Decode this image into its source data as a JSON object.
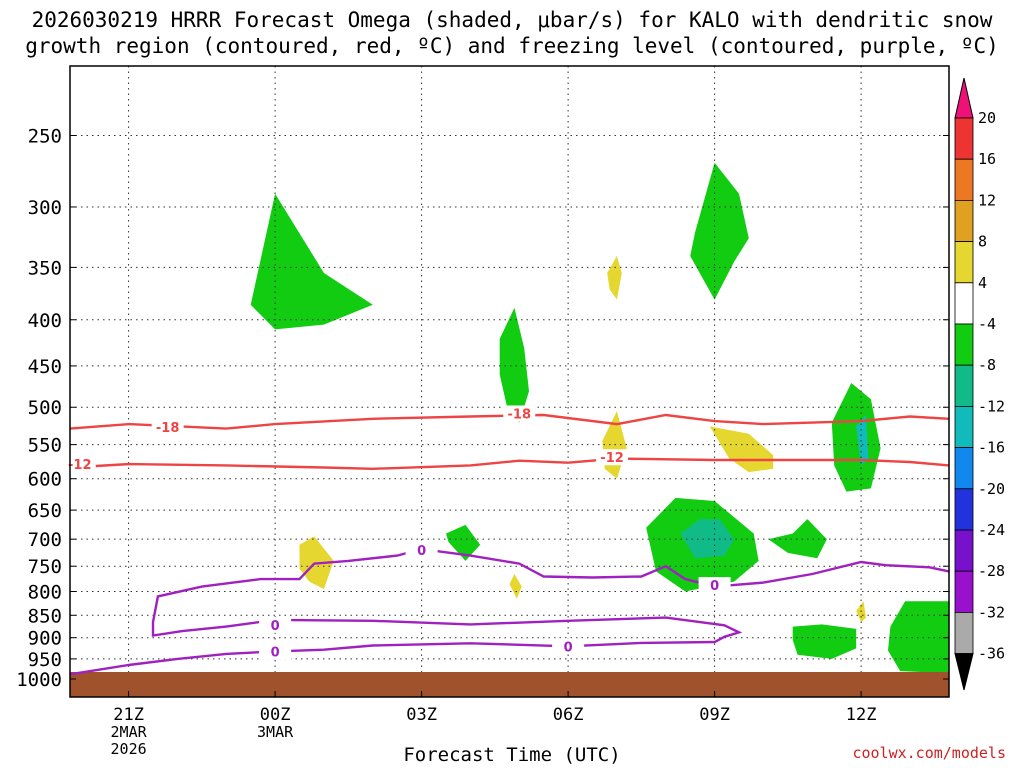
{
  "title_line1": "2026030219 HRRR Forecast Omega (shaded, μbar/s) for KALO with dendritic snow",
  "title_line2": "growth region (contoured, red, ºC) and freezing level (contoured, purple, ºC)",
  "credit": "coolwx.com/models",
  "chart_data": {
    "type": "time-height cross section",
    "title": "2026030219 HRRR Forecast Omega (shaded, μbar/s) for KALO with dendritic snow growth region (contoured, red, ºC) and freezing level (contoured, purple, ºC)",
    "xlabel": "Forecast Time (UTC)",
    "ylabel": "",
    "x_range_hours": [
      -4.2,
      13.8
    ],
    "y_scale": "log-pressure",
    "y_range_hpa": [
      1000,
      200
    ],
    "x_ticks": [
      {
        "h": -3,
        "label": "21Z",
        "sub1": "2MAR",
        "sub2": "2026"
      },
      {
        "h": 0,
        "label": "00Z",
        "sub1": "3MAR",
        "sub2": ""
      },
      {
        "h": 3,
        "label": "03Z",
        "sub1": "",
        "sub2": ""
      },
      {
        "h": 6,
        "label": "06Z",
        "sub1": "",
        "sub2": ""
      },
      {
        "h": 9,
        "label": "09Z",
        "sub1": "",
        "sub2": ""
      },
      {
        "h": 12,
        "label": "12Z",
        "sub1": "",
        "sub2": ""
      }
    ],
    "y_ticks": [
      250,
      300,
      350,
      400,
      450,
      500,
      550,
      600,
      650,
      700,
      750,
      800,
      850,
      900,
      950,
      1000
    ],
    "colorbar": {
      "labels": [
        "20",
        "16",
        "12",
        "8",
        "4",
        "-4",
        "-8",
        "-12",
        "-16",
        "-20",
        "-24",
        "-28",
        "-32",
        "-36"
      ],
      "colors": [
        "#ee1177",
        "#ee3333",
        "#ee7722",
        "#e0a020",
        "#e6d630",
        "#ffffff",
        "#11cc11",
        "#11bb88",
        "#11bbbb",
        "#1188ee",
        "#2233dd",
        "#7711cc",
        "#9911cc",
        "#aaaaaa",
        "#000000"
      ]
    },
    "ground_color": "#a0522d",
    "omega_regions": [
      {
        "color": "#11cc11",
        "pts": [
          [
            -0.5,
            385
          ],
          [
            0,
            290
          ],
          [
            1,
            355
          ],
          [
            2,
            385
          ],
          [
            1,
            405
          ],
          [
            0,
            410
          ]
        ]
      },
      {
        "color": "#11cc11",
        "pts": [
          [
            8.6,
            320
          ],
          [
            9,
            268
          ],
          [
            9.5,
            290
          ],
          [
            9.7,
            325
          ],
          [
            9.4,
            345
          ],
          [
            9,
            380
          ],
          [
            8.5,
            340
          ]
        ]
      },
      {
        "color": "#11cc11",
        "pts": [
          [
            4.6,
            420
          ],
          [
            4.9,
            388
          ],
          [
            5.1,
            430
          ],
          [
            5.2,
            480
          ],
          [
            5,
            520
          ],
          [
            4.75,
            500
          ],
          [
            4.6,
            460
          ]
        ]
      },
      {
        "color": "#e6d630",
        "pts": [
          [
            6.8,
            355
          ],
          [
            7,
            340
          ],
          [
            7.1,
            355
          ],
          [
            7,
            380
          ],
          [
            6.85,
            370
          ]
        ]
      },
      {
        "color": "#e6d630",
        "pts": [
          [
            6.7,
            545
          ],
          [
            7,
            505
          ],
          [
            7.2,
            555
          ],
          [
            7,
            600
          ],
          [
            6.75,
            585
          ]
        ]
      },
      {
        "color": "#e6d630",
        "pts": [
          [
            8.9,
            525
          ],
          [
            9.7,
            535
          ],
          [
            10.2,
            565
          ],
          [
            10.2,
            585
          ],
          [
            9.7,
            590
          ],
          [
            9.3,
            570
          ]
        ]
      },
      {
        "color": "#e6d630",
        "pts": [
          [
            0.5,
            710
          ],
          [
            0.8,
            695
          ],
          [
            1.2,
            740
          ],
          [
            1,
            795
          ],
          [
            0.7,
            780
          ],
          [
            0.5,
            755
          ]
        ]
      },
      {
        "color": "#e6d630",
        "pts": [
          [
            4.8,
            785
          ],
          [
            4.9,
            765
          ],
          [
            5.05,
            790
          ],
          [
            4.95,
            815
          ]
        ]
      },
      {
        "color": "#e6d630",
        "pts": [
          [
            11.9,
            840
          ],
          [
            12.05,
            820
          ],
          [
            12.1,
            855
          ],
          [
            12,
            865
          ]
        ]
      },
      {
        "color": "#11cc11",
        "pts": [
          [
            11.4,
            520
          ],
          [
            11.8,
            470
          ],
          [
            12.2,
            490
          ],
          [
            12.4,
            555
          ],
          [
            12.2,
            615
          ],
          [
            11.7,
            620
          ],
          [
            11.45,
            580
          ]
        ]
      },
      {
        "color": "#11bbbb",
        "pts": [
          [
            11.9,
            525
          ],
          [
            12.1,
            510
          ],
          [
            12.15,
            570
          ],
          [
            12,
            580
          ]
        ]
      },
      {
        "color": "#11cc11",
        "pts": [
          [
            3.5,
            690
          ],
          [
            3.9,
            675
          ],
          [
            4.2,
            710
          ],
          [
            3.9,
            740
          ],
          [
            3.55,
            705
          ]
        ]
      },
      {
        "color": "#11cc11",
        "pts": [
          [
            7.6,
            680
          ],
          [
            8.2,
            630
          ],
          [
            9,
            635
          ],
          [
            9.8,
            690
          ],
          [
            9.9,
            740
          ],
          [
            9.4,
            780
          ],
          [
            8.4,
            800
          ],
          [
            7.8,
            760
          ]
        ]
      },
      {
        "color": "#11bb88",
        "pts": [
          [
            8.3,
            690
          ],
          [
            8.7,
            665
          ],
          [
            9.1,
            665
          ],
          [
            9.4,
            700
          ],
          [
            9.2,
            730
          ],
          [
            8.6,
            735
          ]
        ]
      },
      {
        "color": "#11cc11",
        "pts": [
          [
            10.1,
            700
          ],
          [
            10.6,
            690
          ],
          [
            10.9,
            665
          ],
          [
            11.3,
            700
          ],
          [
            11.1,
            735
          ],
          [
            10.5,
            725
          ]
        ]
      },
      {
        "color": "#11cc11",
        "pts": [
          [
            10.6,
            875
          ],
          [
            11.2,
            870
          ],
          [
            11.9,
            880
          ],
          [
            11.9,
            925
          ],
          [
            11.4,
            950
          ],
          [
            10.7,
            940
          ],
          [
            10.6,
            905
          ]
        ]
      },
      {
        "color": "#11cc11",
        "pts": [
          [
            12.6,
            875
          ],
          [
            12.9,
            820
          ],
          [
            13.8,
            820
          ],
          [
            13.8,
            985
          ],
          [
            12.8,
            980
          ],
          [
            12.55,
            930
          ]
        ]
      }
    ],
    "contours": [
      {
        "name": "-18",
        "color": "#ee4444",
        "pts": [
          [
            -4.2,
            528
          ],
          [
            -3,
            522
          ],
          [
            -1,
            528
          ],
          [
            0,
            522
          ],
          [
            2,
            515
          ],
          [
            4,
            512
          ],
          [
            5.5,
            510
          ],
          [
            7,
            522
          ],
          [
            8,
            510
          ],
          [
            9,
            518
          ],
          [
            10,
            522
          ],
          [
            11,
            520
          ],
          [
            12,
            518
          ],
          [
            13,
            512
          ],
          [
            13.8,
            515
          ]
        ],
        "labels": [
          [
            -2.2,
            526
          ],
          [
            5.0,
            508
          ]
        ]
      },
      {
        "name": "-12",
        "color": "#ee4444",
        "pts": [
          [
            -4.2,
            583
          ],
          [
            -3,
            578
          ],
          [
            -1,
            580
          ],
          [
            1,
            583
          ],
          [
            2,
            585
          ],
          [
            4,
            580
          ],
          [
            5,
            573
          ],
          [
            6,
            576
          ],
          [
            7,
            570
          ],
          [
            9,
            572
          ],
          [
            11,
            572
          ],
          [
            12,
            572
          ],
          [
            13,
            575
          ],
          [
            13.8,
            580
          ]
        ],
        "labels": [
          [
            -4.0,
            578
          ],
          [
            6.9,
            568
          ]
        ]
      },
      {
        "name": "0",
        "color": "#a020c0",
        "pts": [
          [
            -4.2,
            988
          ],
          [
            -3,
            965
          ],
          [
            -2,
            950
          ],
          [
            -1,
            938
          ],
          [
            0,
            932
          ],
          [
            1,
            928
          ],
          [
            2,
            918
          ],
          [
            4,
            913
          ],
          [
            6,
            920
          ],
          [
            7.5,
            912
          ],
          [
            9,
            910
          ],
          [
            9.2,
            898
          ],
          [
            9.5,
            888
          ],
          [
            9.2,
            872
          ],
          [
            8,
            855
          ],
          [
            6,
            862
          ],
          [
            4,
            870
          ],
          [
            2,
            862
          ],
          [
            0,
            860
          ],
          [
            -1,
            875
          ],
          [
            -1.9,
            885
          ],
          [
            -2.5,
            895
          ],
          [
            -2.5,
            865
          ],
          [
            -2.4,
            810
          ],
          [
            -1.5,
            790
          ],
          [
            -0.3,
            775
          ],
          [
            0.5,
            775
          ],
          [
            0.8,
            745
          ],
          [
            1.5,
            740
          ],
          [
            2.5,
            730
          ],
          [
            3,
            718
          ],
          [
            4,
            730
          ],
          [
            5,
            745
          ],
          [
            5.5,
            770
          ],
          [
            6.5,
            772
          ],
          [
            7.5,
            770
          ],
          [
            8,
            750
          ],
          [
            8.4,
            775
          ],
          [
            9,
            790
          ],
          [
            10,
            782
          ],
          [
            11,
            765
          ],
          [
            12,
            742
          ],
          [
            12.5,
            748
          ],
          [
            13.4,
            752
          ],
          [
            13.8,
            760
          ]
        ],
        "labels": [
          [
            0.0,
            871
          ],
          [
            0.0,
            932
          ],
          [
            3.0,
            720
          ],
          [
            6.0,
            920
          ],
          [
            9.0,
            787
          ]
        ]
      }
    ]
  }
}
